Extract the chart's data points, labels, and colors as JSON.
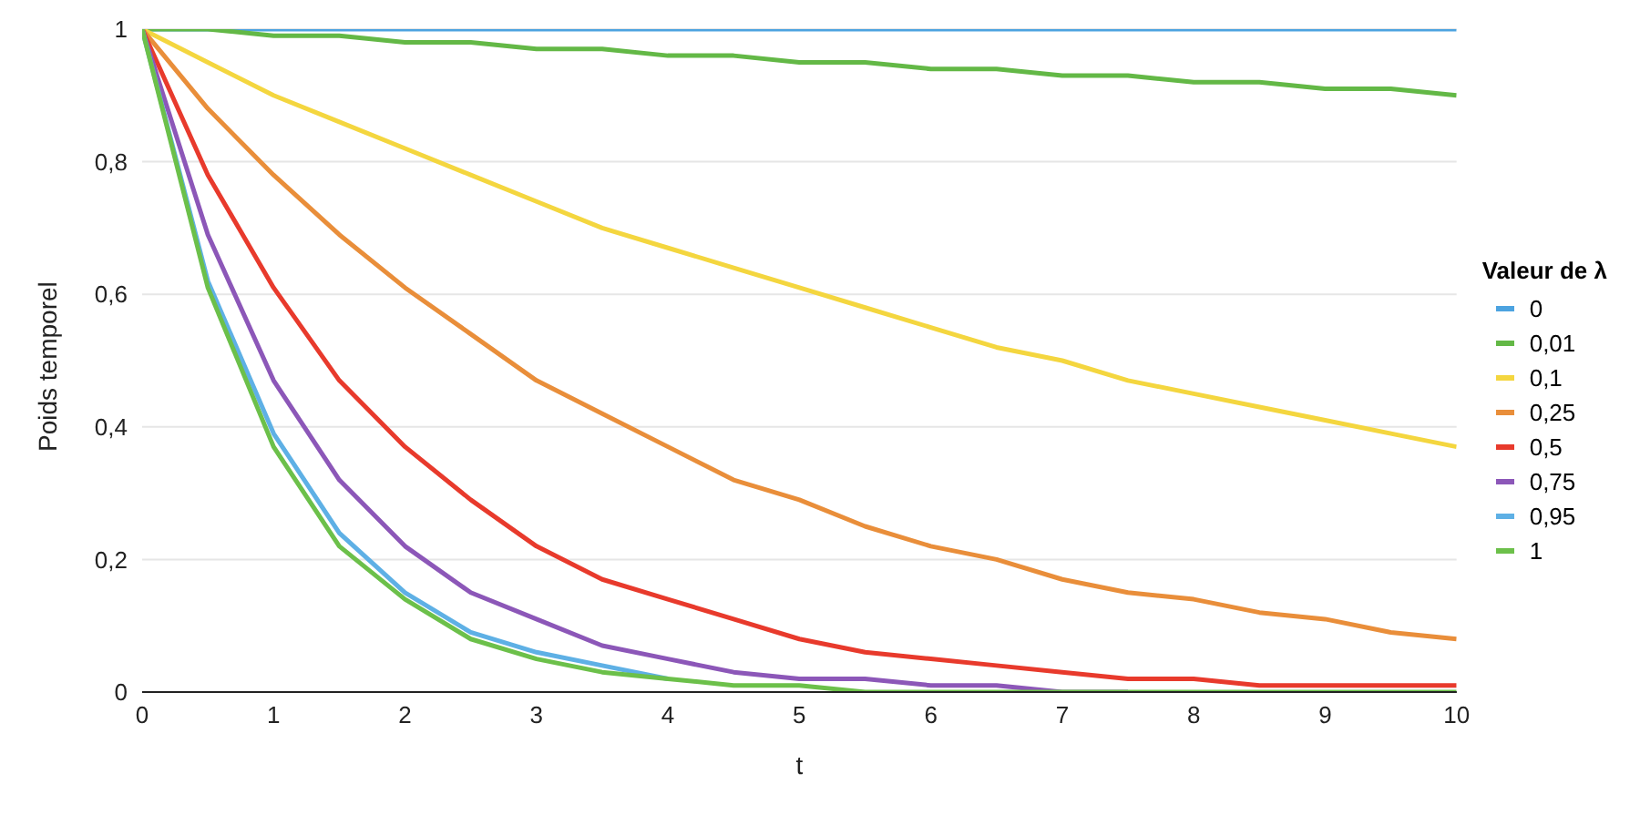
{
  "chart_data": {
    "type": "line",
    "xlabel": "t",
    "ylabel": "Poids temporel",
    "legend_title": "Valeur de λ",
    "x": [
      0,
      0.5,
      1,
      1.5,
      2,
      2.5,
      3,
      3.5,
      4,
      4.5,
      5,
      5.5,
      6,
      6.5,
      7,
      7.5,
      8,
      8.5,
      9,
      9.5,
      10
    ],
    "series": [
      {
        "name": "0",
        "color": "#4ca3e0",
        "values": [
          1,
          1,
          1,
          1,
          1,
          1,
          1,
          1,
          1,
          1,
          1,
          1,
          1,
          1,
          1,
          1,
          1,
          1,
          1,
          1,
          1
        ]
      },
      {
        "name": "0,01",
        "color": "#63b846",
        "values": [
          1,
          1,
          0.99,
          0.99,
          0.98,
          0.98,
          0.97,
          0.97,
          0.96,
          0.96,
          0.95,
          0.95,
          0.94,
          0.94,
          0.93,
          0.93,
          0.92,
          0.92,
          0.91,
          0.91,
          0.9
        ]
      },
      {
        "name": "0,1",
        "color": "#f4d63f",
        "values": [
          1,
          0.95,
          0.9,
          0.86,
          0.82,
          0.78,
          0.74,
          0.7,
          0.67,
          0.64,
          0.61,
          0.58,
          0.55,
          0.52,
          0.5,
          0.47,
          0.45,
          0.43,
          0.41,
          0.39,
          0.37
        ]
      },
      {
        "name": "0,25",
        "color": "#e98e3a",
        "values": [
          1,
          0.88,
          0.78,
          0.69,
          0.61,
          0.54,
          0.47,
          0.42,
          0.37,
          0.32,
          0.29,
          0.25,
          0.22,
          0.2,
          0.17,
          0.15,
          0.14,
          0.12,
          0.11,
          0.09,
          0.08
        ]
      },
      {
        "name": "0,5",
        "color": "#e83a2c",
        "values": [
          1,
          0.78,
          0.61,
          0.47,
          0.37,
          0.29,
          0.22,
          0.17,
          0.14,
          0.11,
          0.08,
          0.06,
          0.05,
          0.04,
          0.03,
          0.02,
          0.02,
          0.01,
          0.01,
          0.01,
          0.01
        ]
      },
      {
        "name": "0,75",
        "color": "#8c57b8",
        "values": [
          1,
          0.69,
          0.47,
          0.32,
          0.22,
          0.15,
          0.11,
          0.07,
          0.05,
          0.03,
          0.02,
          0.02,
          0.01,
          0.01,
          0,
          0,
          null,
          null,
          null,
          null,
          null
        ]
      },
      {
        "name": "0,95",
        "color": "#5eb0e5",
        "values": [
          1,
          0.62,
          0.39,
          0.24,
          0.15,
          0.09,
          0.06,
          0.04,
          0.02,
          null,
          null,
          null,
          null,
          null,
          null,
          null,
          null,
          null,
          null,
          null,
          null
        ]
      },
      {
        "name": "1",
        "color": "#6cc04a",
        "values": [
          1,
          0.61,
          0.37,
          0.22,
          0.14,
          0.08,
          0.05,
          0.03,
          0.02,
          0.01,
          0.01,
          0,
          0,
          0,
          0,
          0,
          0,
          0,
          0,
          0,
          0
        ]
      }
    ],
    "xlim": [
      0,
      10
    ],
    "xticks": [
      0,
      1,
      2,
      3,
      4,
      5,
      6,
      7,
      8,
      9,
      10
    ],
    "ylim": [
      0,
      1
    ],
    "yticks": [
      0,
      {
        "value": 0.2,
        "label": "0,2"
      },
      {
        "value": 0.4,
        "label": "0,4"
      },
      {
        "value": 0.6,
        "label": "0,6"
      },
      {
        "value": 0.8,
        "label": "0,8"
      },
      1
    ],
    "grid": "y",
    "legend": "right",
    "marker": "none",
    "line_style": "solid"
  }
}
